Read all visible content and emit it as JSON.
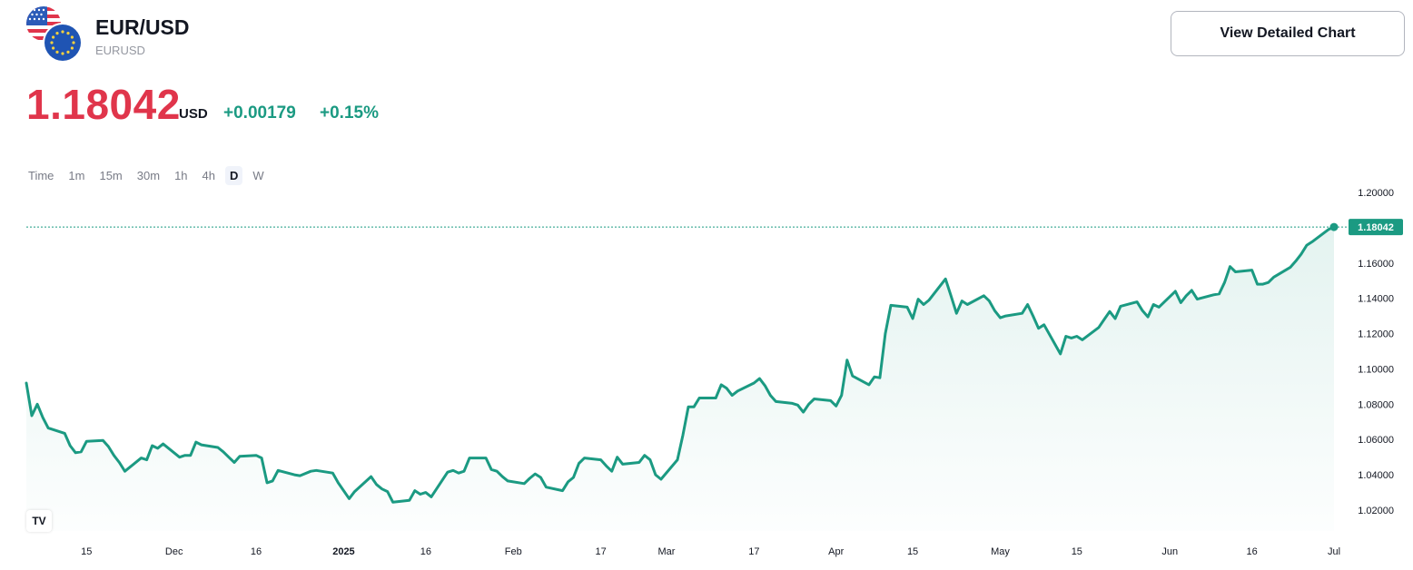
{
  "header": {
    "title": "EUR/USD",
    "subtitle": "EURUSD",
    "view_button": "View Detailed Chart"
  },
  "quote": {
    "price": "1.18042",
    "currency": "USD",
    "change_abs": "+0.00179",
    "change_pct": "+0.15%"
  },
  "intervals": [
    {
      "label": "Time",
      "active": false
    },
    {
      "label": "1m",
      "active": false
    },
    {
      "label": "15m",
      "active": false
    },
    {
      "label": "30m",
      "active": false
    },
    {
      "label": "1h",
      "active": false
    },
    {
      "label": "4h",
      "active": false
    },
    {
      "label": "D",
      "active": true
    },
    {
      "label": "W",
      "active": false
    }
  ],
  "logo_text": "TV",
  "colors": {
    "line": "#1b9a82",
    "price": "#e0354b",
    "change": "#1b9a82"
  },
  "chart_data": {
    "type": "area",
    "ylim": [
      1.01,
      1.2
    ],
    "y_ticks": [
      1.02,
      1.04,
      1.06,
      1.08,
      1.1,
      1.12,
      1.14,
      1.16,
      1.18,
      1.2
    ],
    "y_tick_labels": [
      "1.02000",
      "1.04000",
      "1.06000",
      "1.08000",
      "1.10000",
      "1.12000",
      "1.14000",
      "1.16000",
      "1.18000",
      "1.20000"
    ],
    "last_value_label": "1.18042",
    "last_value": 1.18042,
    "x_labels": [
      {
        "date": "2024-11-15",
        "text": "15",
        "bold": false
      },
      {
        "date": "2024-12-01",
        "text": "Dec",
        "bold": false
      },
      {
        "date": "2024-12-16",
        "text": "16",
        "bold": false
      },
      {
        "date": "2025-01-01",
        "text": "2025",
        "bold": true
      },
      {
        "date": "2025-01-16",
        "text": "16",
        "bold": false
      },
      {
        "date": "2025-02-01",
        "text": "Feb",
        "bold": false
      },
      {
        "date": "2025-02-17",
        "text": "17",
        "bold": false
      },
      {
        "date": "2025-03-01",
        "text": "Mar",
        "bold": false
      },
      {
        "date": "2025-03-17",
        "text": "17",
        "bold": false
      },
      {
        "date": "2025-04-01",
        "text": "Apr",
        "bold": false
      },
      {
        "date": "2025-04-15",
        "text": "15",
        "bold": false
      },
      {
        "date": "2025-05-01",
        "text": "May",
        "bold": false
      },
      {
        "date": "2025-05-15",
        "text": "15",
        "bold": false
      },
      {
        "date": "2025-06-01",
        "text": "Jun",
        "bold": false
      },
      {
        "date": "2025-06-16",
        "text": "16",
        "bold": false
      },
      {
        "date": "2025-07-01",
        "text": "Jul",
        "bold": false
      }
    ],
    "series": [
      {
        "points": [
          [
            "2024-11-04",
            1.092
          ],
          [
            "2024-11-05",
            1.0735
          ],
          [
            "2024-11-06",
            1.08
          ],
          [
            "2024-11-07",
            1.0725
          ],
          [
            "2024-11-08",
            1.0665
          ],
          [
            "2024-11-11",
            1.0635
          ],
          [
            "2024-11-12",
            1.0565
          ],
          [
            "2024-11-13",
            1.0525
          ],
          [
            "2024-11-14",
            1.053
          ],
          [
            "2024-11-15",
            1.059
          ],
          [
            "2024-11-18",
            1.0595
          ],
          [
            "2024-11-19",
            1.056
          ],
          [
            "2024-11-20",
            1.051
          ],
          [
            "2024-11-21",
            1.047
          ],
          [
            "2024-11-22",
            1.042
          ],
          [
            "2024-11-25",
            1.0495
          ],
          [
            "2024-11-26",
            1.0485
          ],
          [
            "2024-11-27",
            1.0565
          ],
          [
            "2024-11-28",
            1.055
          ],
          [
            "2024-11-29",
            1.0575
          ],
          [
            "2024-12-02",
            1.05
          ],
          [
            "2024-12-03",
            1.051
          ],
          [
            "2024-12-04",
            1.051
          ],
          [
            "2024-12-05",
            1.0585
          ],
          [
            "2024-12-06",
            1.057
          ],
          [
            "2024-12-09",
            1.0555
          ],
          [
            "2024-12-10",
            1.053
          ],
          [
            "2024-12-11",
            1.05
          ],
          [
            "2024-12-12",
            1.047
          ],
          [
            "2024-12-13",
            1.0505
          ],
          [
            "2024-12-16",
            1.051
          ],
          [
            "2024-12-17",
            1.0495
          ],
          [
            "2024-12-18",
            1.0355
          ],
          [
            "2024-12-19",
            1.0365
          ],
          [
            "2024-12-20",
            1.0425
          ],
          [
            "2024-12-23",
            1.04
          ],
          [
            "2024-12-24",
            1.0395
          ],
          [
            "2024-12-26",
            1.042
          ],
          [
            "2024-12-27",
            1.0425
          ],
          [
            "2024-12-30",
            1.041
          ],
          [
            "2024-12-31",
            1.0355
          ],
          [
            "2025-01-02",
            1.0265
          ],
          [
            "2025-01-03",
            1.0305
          ],
          [
            "2025-01-06",
            1.039
          ],
          [
            "2025-01-07",
            1.0345
          ],
          [
            "2025-01-08",
            1.032
          ],
          [
            "2025-01-09",
            1.0305
          ],
          [
            "2025-01-10",
            1.0245
          ],
          [
            "2025-01-13",
            1.0255
          ],
          [
            "2025-01-14",
            1.031
          ],
          [
            "2025-01-15",
            1.029
          ],
          [
            "2025-01-16",
            1.03
          ],
          [
            "2025-01-17",
            1.0275
          ],
          [
            "2025-01-20",
            1.0415
          ],
          [
            "2025-01-21",
            1.0425
          ],
          [
            "2025-01-22",
            1.041
          ],
          [
            "2025-01-23",
            1.042
          ],
          [
            "2025-01-24",
            1.0495
          ],
          [
            "2025-01-27",
            1.0495
          ],
          [
            "2025-01-28",
            1.043
          ],
          [
            "2025-01-29",
            1.042
          ],
          [
            "2025-01-30",
            1.039
          ],
          [
            "2025-01-31",
            1.0365
          ],
          [
            "2025-02-03",
            1.035
          ],
          [
            "2025-02-04",
            1.038
          ],
          [
            "2025-02-05",
            1.0405
          ],
          [
            "2025-02-06",
            1.0385
          ],
          [
            "2025-02-07",
            1.033
          ],
          [
            "2025-02-10",
            1.031
          ],
          [
            "2025-02-11",
            1.036
          ],
          [
            "2025-02-12",
            1.0385
          ],
          [
            "2025-02-13",
            1.0465
          ],
          [
            "2025-02-14",
            1.0495
          ],
          [
            "2025-02-17",
            1.0485
          ],
          [
            "2025-02-18",
            1.045
          ],
          [
            "2025-02-19",
            1.042
          ],
          [
            "2025-02-20",
            1.05
          ],
          [
            "2025-02-21",
            1.046
          ],
          [
            "2025-02-24",
            1.047
          ],
          [
            "2025-02-25",
            1.051
          ],
          [
            "2025-02-26",
            1.0485
          ],
          [
            "2025-02-27",
            1.04
          ],
          [
            "2025-02-28",
            1.0375
          ],
          [
            "2025-03-03",
            1.0485
          ],
          [
            "2025-03-04",
            1.0625
          ],
          [
            "2025-03-05",
            1.0785
          ],
          [
            "2025-03-06",
            1.0785
          ],
          [
            "2025-03-07",
            1.0835
          ],
          [
            "2025-03-10",
            1.0835
          ],
          [
            "2025-03-11",
            1.091
          ],
          [
            "2025-03-12",
            1.089
          ],
          [
            "2025-03-13",
            1.085
          ],
          [
            "2025-03-14",
            1.0875
          ],
          [
            "2025-03-17",
            1.092
          ],
          [
            "2025-03-18",
            1.0945
          ],
          [
            "2025-03-19",
            1.0905
          ],
          [
            "2025-03-20",
            1.085
          ],
          [
            "2025-03-21",
            1.0815
          ],
          [
            "2025-03-24",
            1.0805
          ],
          [
            "2025-03-25",
            1.0795
          ],
          [
            "2025-03-26",
            1.0755
          ],
          [
            "2025-03-27",
            1.08
          ],
          [
            "2025-03-28",
            1.083
          ],
          [
            "2025-03-31",
            1.082
          ],
          [
            "2025-04-01",
            1.079
          ],
          [
            "2025-04-02",
            1.085
          ],
          [
            "2025-04-03",
            1.105
          ],
          [
            "2025-04-04",
            1.096
          ],
          [
            "2025-04-07",
            1.091
          ],
          [
            "2025-04-08",
            1.0955
          ],
          [
            "2025-04-09",
            1.095
          ],
          [
            "2025-04-10",
            1.12
          ],
          [
            "2025-04-11",
            1.136
          ],
          [
            "2025-04-14",
            1.135
          ],
          [
            "2025-04-15",
            1.1285
          ],
          [
            "2025-04-16",
            1.1395
          ],
          [
            "2025-04-17",
            1.1365
          ],
          [
            "2025-04-18",
            1.139
          ],
          [
            "2025-04-21",
            1.151
          ],
          [
            "2025-04-22",
            1.1415
          ],
          [
            "2025-04-23",
            1.1315
          ],
          [
            "2025-04-24",
            1.1385
          ],
          [
            "2025-04-25",
            1.1365
          ],
          [
            "2025-04-28",
            1.1415
          ],
          [
            "2025-04-29",
            1.1385
          ],
          [
            "2025-04-30",
            1.133
          ],
          [
            "2025-05-01",
            1.129
          ],
          [
            "2025-05-02",
            1.13
          ],
          [
            "2025-05-05",
            1.1315
          ],
          [
            "2025-05-06",
            1.1365
          ],
          [
            "2025-05-07",
            1.13
          ],
          [
            "2025-05-08",
            1.123
          ],
          [
            "2025-05-09",
            1.125
          ],
          [
            "2025-05-12",
            1.1085
          ],
          [
            "2025-05-13",
            1.1185
          ],
          [
            "2025-05-14",
            1.1175
          ],
          [
            "2025-05-15",
            1.1185
          ],
          [
            "2025-05-16",
            1.1165
          ],
          [
            "2025-05-19",
            1.1235
          ],
          [
            "2025-05-20",
            1.128
          ],
          [
            "2025-05-21",
            1.1325
          ],
          [
            "2025-05-22",
            1.1285
          ],
          [
            "2025-05-23",
            1.1355
          ],
          [
            "2025-05-26",
            1.138
          ],
          [
            "2025-05-27",
            1.133
          ],
          [
            "2025-05-28",
            1.1295
          ],
          [
            "2025-05-29",
            1.1365
          ],
          [
            "2025-05-30",
            1.135
          ],
          [
            "2025-06-02",
            1.144
          ],
          [
            "2025-06-03",
            1.1375
          ],
          [
            "2025-06-04",
            1.1415
          ],
          [
            "2025-06-05",
            1.1445
          ],
          [
            "2025-06-06",
            1.1395
          ],
          [
            "2025-06-09",
            1.142
          ],
          [
            "2025-06-10",
            1.1425
          ],
          [
            "2025-06-11",
            1.149
          ],
          [
            "2025-06-12",
            1.158
          ],
          [
            "2025-06-13",
            1.155
          ],
          [
            "2025-06-16",
            1.156
          ],
          [
            "2025-06-17",
            1.148
          ],
          [
            "2025-06-18",
            1.148
          ],
          [
            "2025-06-19",
            1.149
          ],
          [
            "2025-06-20",
            1.152
          ],
          [
            "2025-06-23",
            1.1575
          ],
          [
            "2025-06-24",
            1.161
          ],
          [
            "2025-06-25",
            1.165
          ],
          [
            "2025-06-26",
            1.17
          ],
          [
            "2025-06-27",
            1.172
          ],
          [
            "2025-06-30",
            1.179
          ],
          [
            "2025-07-01",
            1.18042
          ]
        ]
      }
    ]
  }
}
